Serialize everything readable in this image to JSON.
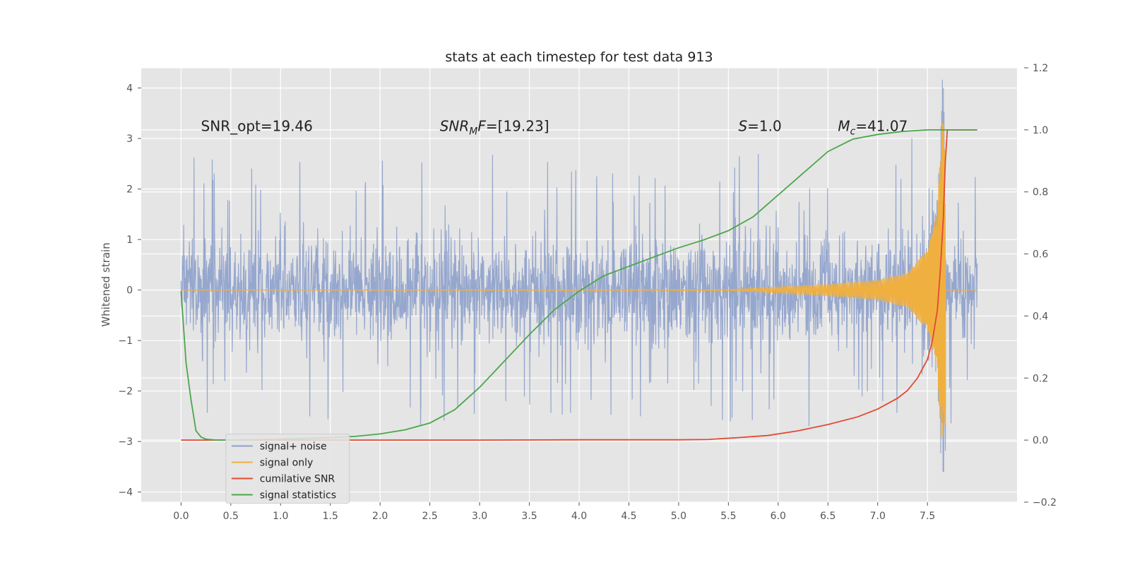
{
  "chart_data": {
    "type": "line",
    "title": "stats at each timestep for test data 913",
    "ylabel": "Whitened strain",
    "xlabel": "",
    "xlim": [
      -0.4,
      8.4
    ],
    "ylim": [
      -4.2,
      4.4
    ],
    "y2lim": [
      -0.2,
      1.2
    ],
    "x_ticks": [
      "0.0",
      "0.5",
      "1.0",
      "1.5",
      "2.0",
      "2.5",
      "3.0",
      "3.5",
      "4.0",
      "4.5",
      "5.0",
      "5.5",
      "6.0",
      "6.5",
      "7.0",
      "7.5"
    ],
    "y_ticks": [
      "−4",
      "−3",
      "−2",
      "−1",
      "0",
      "1",
      "2",
      "3",
      "4"
    ],
    "y2_ticks": [
      "−0.2",
      "0.0",
      "0.2",
      "0.4",
      "0.6",
      "0.8",
      "1.0",
      "1.2"
    ],
    "grid": true,
    "legend_position": "lower-left",
    "colors": {
      "signal_noise": "#8da0cb",
      "signal_only": "#f0b040",
      "cumulative_snr": "#e24a33",
      "signal_statistics": "#4ca64c"
    },
    "annotations": [
      {
        "id": "snr-opt",
        "parts": [
          {
            "text": "SNR_opt=19.46",
            "style": "normal"
          }
        ]
      },
      {
        "id": "snr-mf",
        "parts": [
          {
            "text": "SNR",
            "style": "italic"
          },
          {
            "text": "M",
            "style": "italic-sub"
          },
          {
            "text": "F",
            "style": "italic"
          },
          {
            "text": "=[19.23]",
            "style": "normal"
          }
        ]
      },
      {
        "id": "s-value",
        "parts": [
          {
            "text": "S",
            "style": "italic"
          },
          {
            "text": "=1.0",
            "style": "normal"
          }
        ]
      },
      {
        "id": "mc-value",
        "parts": [
          {
            "text": "M",
            "style": "italic"
          },
          {
            "text": "c",
            "style": "italic-sub"
          },
          {
            "text": "=41.07",
            "style": "normal"
          }
        ]
      }
    ],
    "series": [
      {
        "name": "signal+ noise",
        "axis": "left",
        "x_range": [
          0.0,
          8.0
        ],
        "samples": 2400,
        "envelope_typical": 0.75,
        "envelope_peak": 2.7,
        "peak_excursion": {
          "x": 7.66,
          "max": 4.0,
          "min": -3.6
        }
      },
      {
        "name": "signal only",
        "axis": "left",
        "chirp_end": 7.68,
        "x": [
          0.0,
          5.5,
          6.0,
          6.5,
          7.0,
          7.3,
          7.5,
          7.6,
          7.65,
          7.68
        ],
        "amplitude": [
          0.0,
          0.01,
          0.06,
          0.12,
          0.2,
          0.35,
          0.8,
          1.6,
          3.5,
          3.0
        ]
      },
      {
        "name": "cumilative SNR",
        "axis": "right",
        "x": [
          0.0,
          1.0,
          2.0,
          3.0,
          4.0,
          5.0,
          5.3,
          5.6,
          5.9,
          6.2,
          6.5,
          6.8,
          7.0,
          7.2,
          7.3,
          7.4,
          7.5,
          7.55,
          7.6,
          7.63,
          7.66,
          7.68,
          7.7,
          8.0
        ],
        "y": [
          0.0,
          0.0,
          0.0,
          0.0,
          0.001,
          0.001,
          0.002,
          0.008,
          0.015,
          0.03,
          0.05,
          0.075,
          0.1,
          0.135,
          0.16,
          0.2,
          0.26,
          0.32,
          0.42,
          0.55,
          0.72,
          0.9,
          1.0,
          1.0
        ]
      },
      {
        "name": "signal statistics",
        "axis": "right",
        "x": [
          0.0,
          0.05,
          0.1,
          0.15,
          0.2,
          0.25,
          0.35,
          0.5,
          1.0,
          1.5,
          1.75,
          2.0,
          2.25,
          2.5,
          2.75,
          3.0,
          3.25,
          3.5,
          3.75,
          4.0,
          4.25,
          4.5,
          4.75,
          5.0,
          5.25,
          5.5,
          5.75,
          6.0,
          6.25,
          6.5,
          6.75,
          7.0,
          7.25,
          7.5,
          7.75,
          8.0
        ],
        "y": [
          0.48,
          0.25,
          0.13,
          0.03,
          0.01,
          0.003,
          0.0,
          0.0,
          0.003,
          0.008,
          0.012,
          0.02,
          0.033,
          0.055,
          0.098,
          0.17,
          0.255,
          0.34,
          0.42,
          0.48,
          0.53,
          0.56,
          0.59,
          0.62,
          0.645,
          0.675,
          0.72,
          0.79,
          0.86,
          0.93,
          0.97,
          0.985,
          0.995,
          1.0,
          1.0,
          1.0
        ]
      }
    ]
  }
}
